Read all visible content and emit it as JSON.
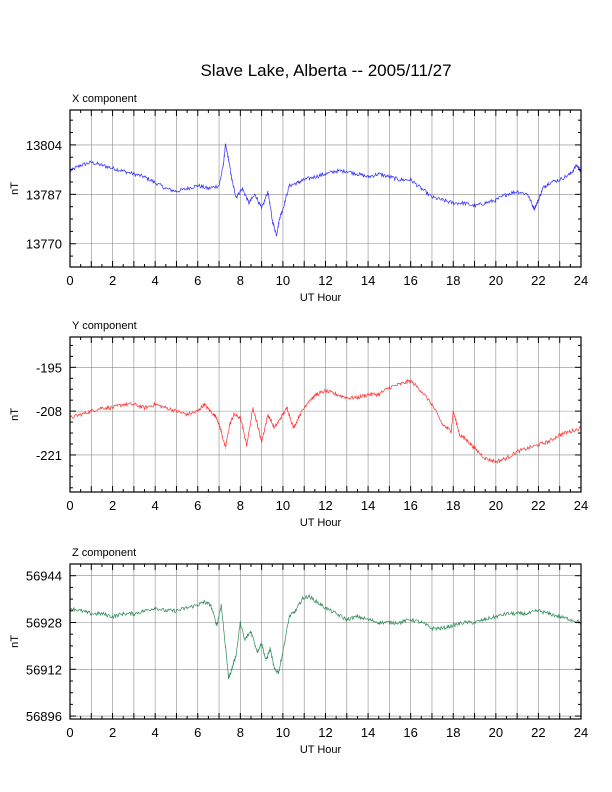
{
  "title": "Slave Lake, Alberta -- 2005/11/27",
  "chart_data": [
    {
      "type": "line",
      "panel_title": "X component",
      "xlabel": "UT Hour",
      "ylabel": "nT",
      "xlim": [
        0,
        24
      ],
      "ylim": [
        13762,
        13816
      ],
      "xticks": [
        0,
        2,
        4,
        6,
        8,
        10,
        12,
        14,
        16,
        18,
        20,
        22,
        24
      ],
      "yticks": [
        13770,
        13787,
        13804
      ],
      "grid": true,
      "color": "#3030ff",
      "series": [
        {
          "x": [
            0,
            0.5,
            1,
            1.5,
            2,
            2.5,
            3,
            3.5,
            4,
            4.5,
            5,
            5.5,
            6,
            6.5,
            7,
            7.2,
            7.3,
            7.45,
            7.6,
            7.8,
            8.1,
            8.4,
            8.7,
            9,
            9.3,
            9.5,
            9.7,
            9.85,
            10,
            10.3,
            10.7,
            11,
            11.5,
            12,
            12.5,
            13,
            13.5,
            14,
            14.5,
            15,
            15.5,
            16,
            16.5,
            17,
            17.5,
            18,
            18.5,
            19,
            19.5,
            20,
            20.5,
            21,
            21.5,
            21.8,
            22,
            22.2,
            22.5,
            23,
            23.5,
            23.8,
            24
          ],
          "y": [
            13795,
            13797,
            13798,
            13797,
            13796,
            13795,
            13794,
            13793,
            13791,
            13789,
            13788,
            13789,
            13790,
            13789,
            13790,
            13797,
            13804,
            13799,
            13792,
            13786,
            13789,
            13784,
            13787,
            13782,
            13788,
            13778,
            13773,
            13779,
            13782,
            13790,
            13791,
            13792,
            13793,
            13794,
            13795,
            13795,
            13794,
            13793,
            13794,
            13793,
            13792,
            13792,
            13789,
            13786,
            13785,
            13784,
            13784,
            13783,
            13784,
            13785,
            13787,
            13788,
            13787,
            13782,
            13785,
            13789,
            13791,
            13792,
            13794,
            13797,
            13795
          ]
        }
      ]
    },
    {
      "type": "line",
      "panel_title": "Y component",
      "xlabel": "UT Hour",
      "ylabel": "nT",
      "xlim": [
        0,
        24
      ],
      "ylim": [
        -232,
        -186
      ],
      "xticks": [
        0,
        2,
        4,
        6,
        8,
        10,
        12,
        14,
        16,
        18,
        20,
        22,
        24
      ],
      "yticks": [
        -195,
        -208,
        -221
      ],
      "grid": true,
      "color": "#ff3030",
      "series": [
        {
          "x": [
            0,
            0.5,
            1,
            1.5,
            2,
            2.5,
            3,
            3.5,
            4,
            4.5,
            5,
            5.5,
            6,
            6.3,
            6.6,
            6.9,
            7.1,
            7.3,
            7.5,
            7.7,
            8,
            8.3,
            8.6,
            8.8,
            9,
            9.3,
            9.6,
            9.9,
            10.2,
            10.5,
            10.8,
            11.2,
            11.6,
            12,
            12.5,
            13,
            13.5,
            14,
            14.5,
            15,
            15.5,
            16,
            16.5,
            17,
            17.5,
            17.9,
            18,
            18.3,
            18.7,
            19,
            19.5,
            20,
            20.5,
            21,
            21.5,
            22,
            22.5,
            23,
            23.5,
            24
          ],
          "y": [
            -210,
            -209,
            -208,
            -207,
            -207,
            -206,
            -206,
            -207,
            -206,
            -207,
            -208,
            -209,
            -208,
            -206,
            -208,
            -210,
            -214,
            -219,
            -212,
            -209,
            -210,
            -218,
            -207,
            -212,
            -217,
            -209,
            -213,
            -210,
            -207,
            -213,
            -209,
            -205,
            -203,
            -202,
            -203,
            -204,
            -204,
            -203,
            -203,
            -201,
            -200,
            -199,
            -202,
            -206,
            -212,
            -214,
            -208,
            -215,
            -217,
            -219,
            -222,
            -223,
            -222,
            -220,
            -219,
            -218,
            -217,
            -215,
            -214,
            -213
          ]
        }
      ]
    },
    {
      "type": "line",
      "panel_title": "Z component",
      "xlabel": "UT Hour",
      "ylabel": "nT",
      "xlim": [
        0,
        24
      ],
      "ylim": [
        56895,
        56948
      ],
      "xticks": [
        0,
        2,
        4,
        6,
        8,
        10,
        12,
        14,
        16,
        18,
        20,
        22,
        24
      ],
      "yticks": [
        56896,
        56912,
        56928,
        56944
      ],
      "grid": true,
      "color": "#2e8b57",
      "series": [
        {
          "x": [
            0,
            0.5,
            1,
            1.5,
            2,
            2.5,
            3,
            3.5,
            4,
            4.5,
            5,
            5.5,
            6,
            6.3,
            6.6,
            6.9,
            7.1,
            7.3,
            7.45,
            7.6,
            7.8,
            8,
            8.2,
            8.5,
            8.8,
            9,
            9.2,
            9.4,
            9.6,
            9.8,
            10,
            10.3,
            10.6,
            10.9,
            11.2,
            11.6,
            12,
            12.5,
            13,
            13.5,
            14,
            14.5,
            15,
            15.5,
            16,
            16.5,
            17,
            17.5,
            18,
            18.5,
            19,
            19.5,
            20,
            20.5,
            21,
            21.5,
            22,
            22.5,
            23,
            23.5,
            24
          ],
          "y": [
            56933,
            56932,
            56931,
            56931,
            56930,
            56931,
            56931,
            56932,
            56933,
            56932,
            56932,
            56933,
            56934,
            56935,
            56934,
            56927,
            56934,
            56920,
            56909,
            56912,
            56917,
            56928,
            56922,
            56925,
            56918,
            56921,
            56915,
            56919,
            56912,
            56911,
            56918,
            56930,
            56932,
            56936,
            56937,
            56935,
            56933,
            56931,
            56929,
            56930,
            56929,
            56928,
            56928,
            56928,
            56929,
            56928,
            56926,
            56926,
            56927,
            56928,
            56928,
            56929,
            56930,
            56931,
            56931,
            56931,
            56932,
            56931,
            56930,
            56929,
            56928
          ]
        }
      ]
    }
  ]
}
